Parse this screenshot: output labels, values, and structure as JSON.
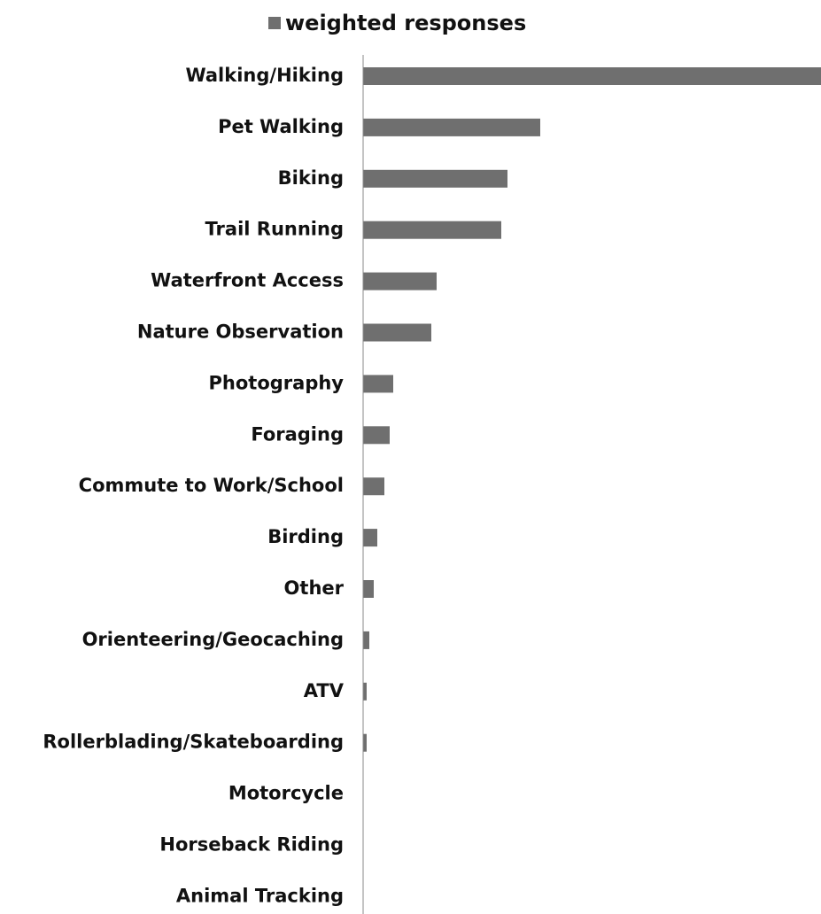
{
  "chart_data": {
    "type": "barh",
    "categories": [
      "Walking/Hiking",
      "Pet Walking",
      "Biking",
      "Trail Running",
      "Waterfront Access",
      "Nature Observation",
      "Photography",
      "Foraging",
      "Commute to Work/School",
      "Birding",
      "Other",
      "Orienteering/Geocaching",
      "ATV",
      "Rollerblading/Skateboarding",
      "Motorcycle",
      "Horseback Riding",
      "Animal Tracking"
    ],
    "series": [
      {
        "name": "weighted responses",
        "color": "#6f6f6f",
        "values": [
          517,
          200,
          163,
          156,
          83,
          77,
          34,
          30,
          24,
          16,
          12,
          7,
          4,
          4,
          0,
          0,
          0
        ]
      }
    ],
    "xlim": [
      0,
      517
    ],
    "legend": "top"
  }
}
